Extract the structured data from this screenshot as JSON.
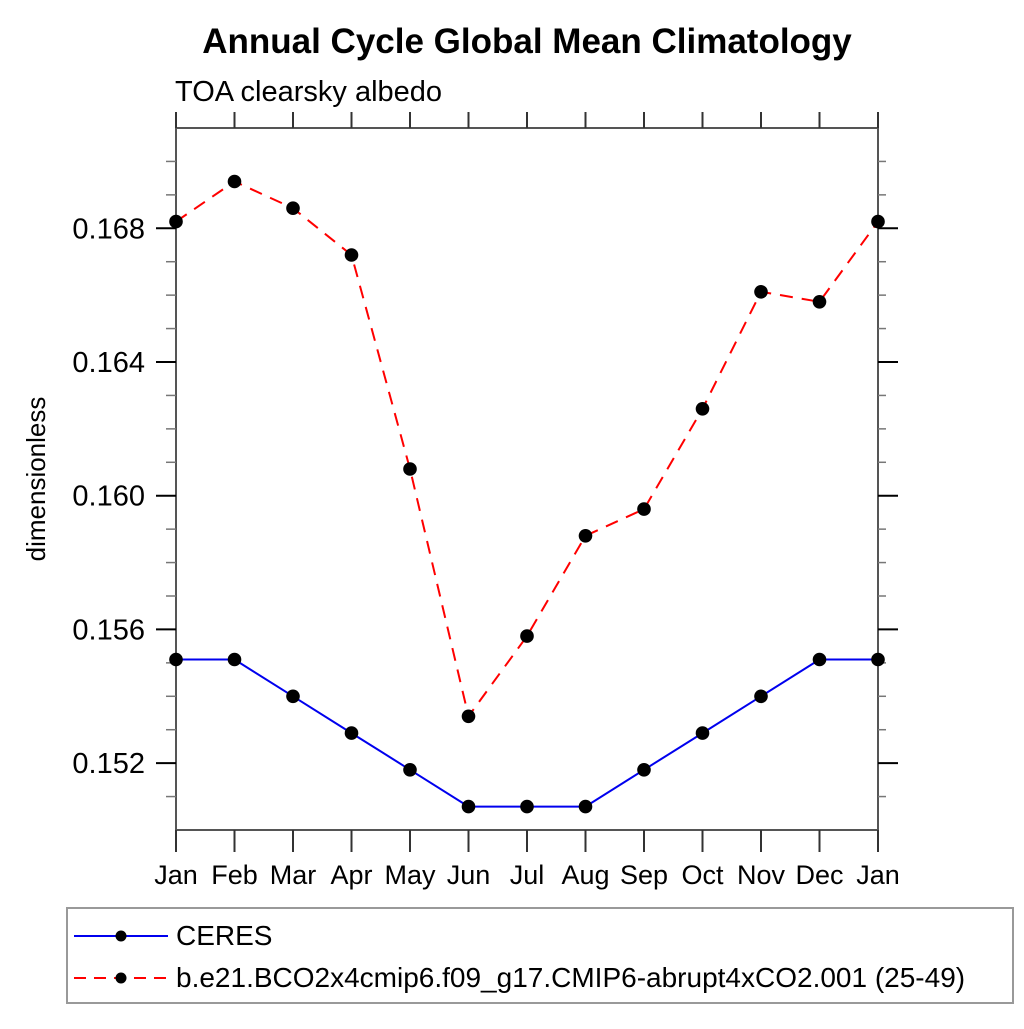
{
  "figure": {
    "title": "Annual Cycle Global Mean Climatology",
    "subtitle": "TOA clearsky albedo",
    "ylabel": "dimensionless"
  },
  "colors": {
    "ceres_line": "#0000ee",
    "model_line": "#ff0000",
    "marker": "#000000",
    "axis_spine": "#555555",
    "major_tick": "#000000",
    "minor_tick": "#777777",
    "legend_border": "#999999",
    "background": "#ffffff",
    "text": "#000000"
  },
  "chart_data": {
    "type": "line",
    "title": "Annual Cycle Global Mean Climatology",
    "subtitle": "TOA clearsky albedo",
    "xlabel": "",
    "ylabel": "dimensionless",
    "categories": [
      "Jan",
      "Feb",
      "Mar",
      "Apr",
      "May",
      "Jun",
      "Jul",
      "Aug",
      "Sep",
      "Oct",
      "Nov",
      "Dec",
      "Jan"
    ],
    "series": [
      {
        "name": "CERES",
        "color": "#0000ee",
        "line_style": "solid",
        "marker": "circle",
        "marker_color": "#000000",
        "values": [
          0.1551,
          0.1551,
          0.154,
          0.1529,
          0.1518,
          0.1507,
          0.1507,
          0.1507,
          0.1518,
          0.1529,
          0.154,
          0.1551,
          0.1551
        ]
      },
      {
        "name": "b.e21.BCO2x4cmip6.f09_g17.CMIP6-abrupt4xCO2.001 (25-49)",
        "color": "#ff0000",
        "line_style": "dashed",
        "marker": "circle",
        "marker_color": "#000000",
        "values": [
          0.1682,
          0.1694,
          0.1686,
          0.1672,
          0.1608,
          0.1534,
          0.1558,
          0.1588,
          0.1596,
          0.1626,
          0.1661,
          0.1658,
          0.1682
        ]
      }
    ],
    "ylim": [
      0.15,
      0.171
    ],
    "yticks_major": [
      0.152,
      0.156,
      0.16,
      0.164,
      0.168
    ],
    "ytick_major_labels": [
      "0.152",
      "0.156",
      "0.160",
      "0.164",
      "0.168"
    ],
    "ytick_minor_step": 0.001,
    "ytick_minor_range": [
      0.151,
      0.17
    ],
    "grid": false,
    "legend_position": "bottom"
  }
}
